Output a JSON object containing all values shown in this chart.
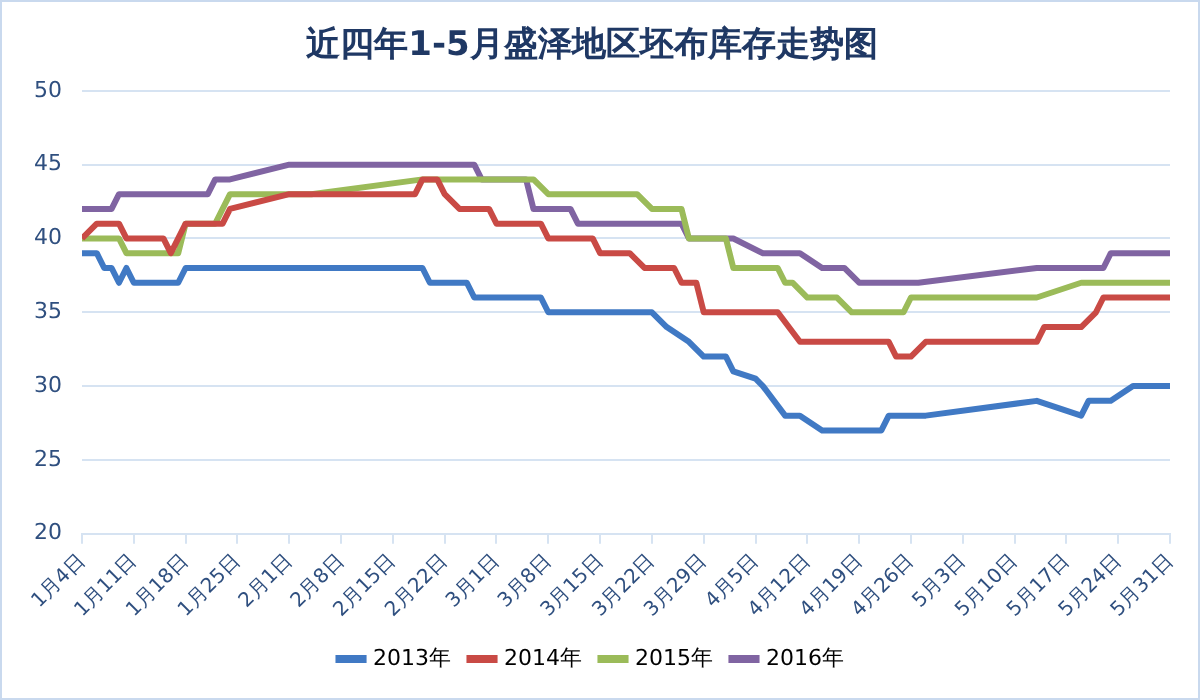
{
  "chart_data": {
    "type": "line",
    "title": "近四年1-5月盛泽地区坯布库存走势图",
    "xlim": [
      "--01-04",
      "--05-31"
    ],
    "xticks": [
      {
        "value": "--01-04",
        "label": "1月4日"
      },
      {
        "value": "--01-11",
        "label": "1月11日"
      },
      {
        "value": "--01-18",
        "label": "1月18日"
      },
      {
        "value": "--01-25",
        "label": "1月25日"
      },
      {
        "value": "--02-01",
        "label": "2月1日"
      },
      {
        "value": "--02-08",
        "label": "2月8日"
      },
      {
        "value": "--02-15",
        "label": "2月15日"
      },
      {
        "value": "--02-22",
        "label": "2月22日"
      },
      {
        "value": "--03-01",
        "label": "3月1日"
      },
      {
        "value": "--03-08",
        "label": "3月8日"
      },
      {
        "value": "--03-15",
        "label": "3月15日"
      },
      {
        "value": "--03-22",
        "label": "3月22日"
      },
      {
        "value": "--03-29",
        "label": "3月29日"
      },
      {
        "value": "--04-05",
        "label": "4月5日"
      },
      {
        "value": "--04-12",
        "label": "4月12日"
      },
      {
        "value": "--04-19",
        "label": "4月19日"
      },
      {
        "value": "--04-26",
        "label": "4月26日"
      },
      {
        "value": "--05-03",
        "label": "5月3日"
      },
      {
        "value": "--05-10",
        "label": "5月10日"
      },
      {
        "value": "--05-17",
        "label": "5月17日"
      },
      {
        "value": "--05-24",
        "label": "5月24日"
      },
      {
        "value": "--05-31",
        "label": "5月31日"
      }
    ],
    "ylim": [
      20,
      50
    ],
    "yticks": [
      20,
      25,
      30,
      35,
      40,
      45,
      50
    ],
    "grid": "y",
    "legend": "bottom",
    "marker": "none",
    "line_style": "solid",
    "series": [
      {
        "name": "2013年",
        "color": "#4079c4",
        "x": [
          "--01-04",
          "--01-06",
          "--01-07",
          "--01-08",
          "--01-09",
          "--01-10",
          "--01-11",
          "--01-17",
          "--01-18",
          "--02-19",
          "--02-20",
          "--02-25",
          "--02-26",
          "--03-07",
          "--03-08",
          "--03-22",
          "--03-24",
          "--03-27",
          "--03-29",
          "--04-01",
          "--04-02",
          "--04-05",
          "--04-06",
          "--04-09",
          "--04-11",
          "--04-14",
          "--04-22",
          "--04-23",
          "--04-28",
          "--05-13",
          "--05-19",
          "--05-20",
          "--05-23",
          "--05-26",
          "--05-31"
        ],
        "values": [
          39,
          39,
          38,
          38,
          37,
          38,
          37,
          37,
          38,
          38,
          37,
          37,
          36,
          36,
          35,
          35,
          34,
          33,
          32,
          32,
          31,
          30.5,
          30,
          28,
          28,
          27,
          27,
          28,
          28,
          29,
          28,
          29,
          29,
          30,
          30
        ]
      },
      {
        "name": "2014年",
        "color": "#c94a45",
        "x": [
          "--01-04",
          "--01-06",
          "--01-09",
          "--01-10",
          "--01-15",
          "--01-16",
          "--01-18",
          "--01-23",
          "--01-24",
          "--02-01",
          "--02-18",
          "--02-19",
          "--02-21",
          "--02-22",
          "--02-24",
          "--02-28",
          "--03-01",
          "--03-07",
          "--03-08",
          "--03-14",
          "--03-15",
          "--03-19",
          "--03-21",
          "--03-25",
          "--03-26",
          "--03-28",
          "--03-29",
          "--04-08",
          "--04-11",
          "--04-23",
          "--04-24",
          "--04-26",
          "--04-28",
          "--05-13",
          "--05-14",
          "--05-19",
          "--05-21",
          "--05-22",
          "--05-31"
        ],
        "values": [
          40,
          41,
          41,
          40,
          40,
          39,
          41,
          41,
          42,
          43,
          43,
          44,
          44,
          43,
          42,
          42,
          41,
          41,
          40,
          40,
          39,
          39,
          38,
          38,
          37,
          37,
          35,
          35,
          33,
          33,
          32,
          32,
          33,
          33,
          34,
          34,
          35,
          36,
          36
        ]
      },
      {
        "name": "2015年",
        "color": "#9bbb59",
        "x": [
          "--01-04",
          "--01-09",
          "--01-10",
          "--01-17",
          "--01-18",
          "--01-22",
          "--01-24",
          "--02-04",
          "--02-19",
          "--03-06",
          "--03-08",
          "--03-20",
          "--03-22",
          "--03-26",
          "--03-27",
          "--04-01",
          "--04-02",
          "--04-08",
          "--04-09",
          "--04-10",
          "--04-12",
          "--04-16",
          "--04-18",
          "--04-25",
          "--04-26",
          "--05-13",
          "--05-19",
          "--05-31"
        ],
        "values": [
          40,
          40,
          39,
          39,
          41,
          41,
          43,
          43,
          44,
          44,
          43,
          43,
          42,
          42,
          40,
          40,
          38,
          38,
          37,
          37,
          36,
          36,
          35,
          35,
          36,
          36,
          37,
          37
        ]
      },
      {
        "name": "2016年",
        "color": "#8064a2",
        "x": [
          "--01-04",
          "--01-08",
          "--01-09",
          "--01-21",
          "--01-22",
          "--01-24",
          "--02-01",
          "--02-26",
          "--02-27",
          "--03-05",
          "--03-06",
          "--03-11",
          "--03-12",
          "--03-26",
          "--03-27",
          "--04-02",
          "--04-06",
          "--04-11",
          "--04-14",
          "--04-17",
          "--04-19",
          "--04-27",
          "--05-13",
          "--05-22",
          "--05-23",
          "--05-31"
        ],
        "values": [
          42,
          42,
          43,
          43,
          44,
          44,
          45,
          45,
          44,
          44,
          42,
          42,
          41,
          41,
          40,
          40,
          39,
          39,
          38,
          38,
          37,
          37,
          38,
          38,
          39,
          39
        ]
      }
    ]
  }
}
